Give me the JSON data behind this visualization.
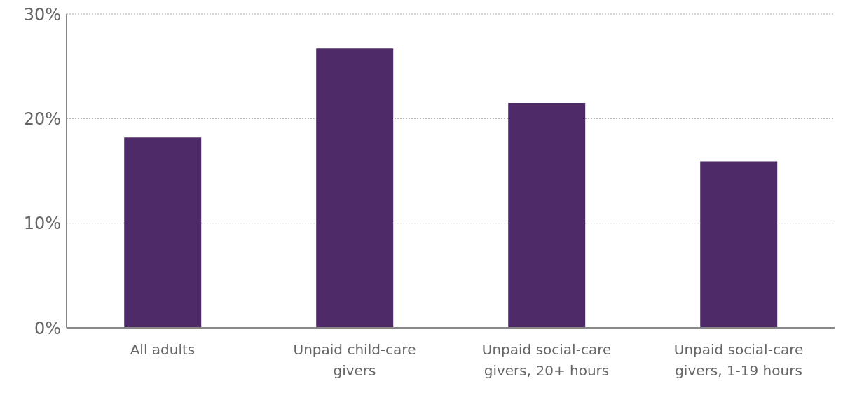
{
  "chart_data": {
    "type": "bar",
    "categories": [
      "All adults",
      "Unpaid child-care givers",
      "Unpaid social-care givers, 20+ hours",
      "Unpaid social-care givers, 1-19 hours"
    ],
    "values": [
      18.2,
      26.7,
      21.5,
      15.9
    ],
    "color": "#4f2a69",
    "ylim": [
      0,
      30
    ],
    "yticks": [
      {
        "value": 0,
        "label": "0%"
      },
      {
        "value": 10,
        "label": "10%"
      },
      {
        "value": 20,
        "label": "20%"
      },
      {
        "value": 30,
        "label": "30%"
      }
    ],
    "grid": "y"
  }
}
